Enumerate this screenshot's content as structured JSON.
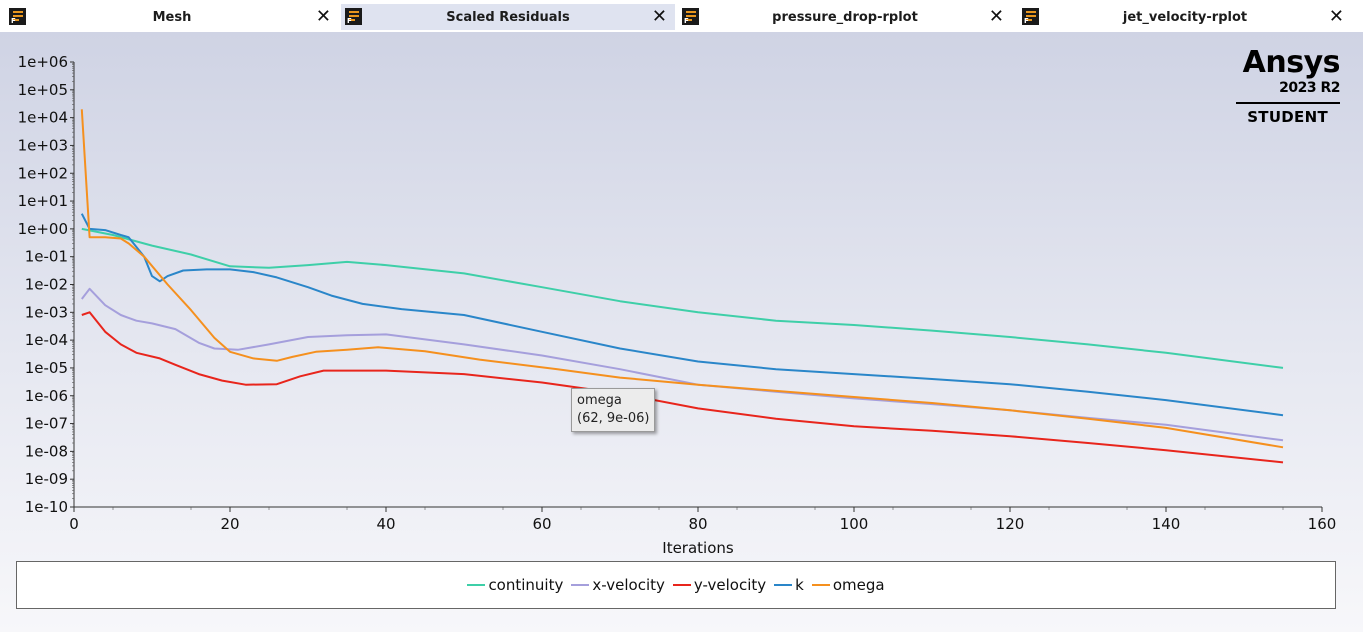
{
  "tabs": [
    {
      "label": "Mesh",
      "active": false
    },
    {
      "label": "Scaled Residuals",
      "active": true
    },
    {
      "label": "pressure_drop-rplot",
      "active": false
    },
    {
      "label": "jet_velocity-rplot",
      "active": false
    }
  ],
  "tab_close_glyph": "✕",
  "tab_icon_letter": "F",
  "logo": {
    "brand": "Ansys",
    "version": "2023 R2",
    "edition": "STUDENT"
  },
  "tooltip": {
    "series": "omega",
    "point": "(62, 9e-06)"
  },
  "chart_data": {
    "type": "line",
    "xlabel": "Iterations",
    "ylabel": "",
    "xlim": [
      0,
      160
    ],
    "ylim_exponent": [
      -10,
      6
    ],
    "yscale": "log",
    "grid": false,
    "legend_position": "bottom",
    "x_ticks": [
      0,
      20,
      40,
      60,
      80,
      100,
      120,
      140,
      160
    ],
    "y_ticks": [
      "1e+06",
      "1e+05",
      "1e+04",
      "1e+03",
      "1e+02",
      "1e+01",
      "1e+00",
      "1e-01",
      "1e-02",
      "1e-03",
      "1e-04",
      "1e-05",
      "1e-06",
      "1e-07",
      "1e-08",
      "1e-09",
      "1e-10"
    ],
    "series": [
      {
        "name": "continuity",
        "color": "#3ecfa8",
        "points": [
          [
            1,
            1.0
          ],
          [
            5,
            0.6
          ],
          [
            10,
            0.25
          ],
          [
            15,
            0.12
          ],
          [
            20,
            0.045
          ],
          [
            25,
            0.04
          ],
          [
            30,
            0.05
          ],
          [
            35,
            0.065
          ],
          [
            40,
            0.05
          ],
          [
            50,
            0.025
          ],
          [
            60,
            0.008
          ],
          [
            70,
            0.0025
          ],
          [
            80,
            0.001
          ],
          [
            90,
            0.0005
          ],
          [
            100,
            0.00035
          ],
          [
            110,
            0.00022
          ],
          [
            120,
            0.00013
          ],
          [
            130,
            7e-05
          ],
          [
            140,
            3.5e-05
          ],
          [
            155,
            1e-05
          ]
        ]
      },
      {
        "name": "x-velocity",
        "color": "#a59fdc",
        "points": [
          [
            1,
            0.003
          ],
          [
            2,
            0.007
          ],
          [
            4,
            0.0018
          ],
          [
            6,
            0.0008
          ],
          [
            8,
            0.0005
          ],
          [
            10,
            0.0004
          ],
          [
            13,
            0.00025
          ],
          [
            16,
            8e-05
          ],
          [
            18,
            5e-05
          ],
          [
            21,
            4.5e-05
          ],
          [
            25,
            7e-05
          ],
          [
            30,
            0.00013
          ],
          [
            35,
            0.00015
          ],
          [
            40,
            0.00016
          ],
          [
            50,
            7e-05
          ],
          [
            60,
            2.8e-05
          ],
          [
            70,
            9e-06
          ],
          [
            80,
            2.5e-06
          ],
          [
            90,
            1.4e-06
          ],
          [
            100,
            8e-07
          ],
          [
            110,
            5e-07
          ],
          [
            120,
            3e-07
          ],
          [
            130,
            1.6e-07
          ],
          [
            140,
            9e-08
          ],
          [
            155,
            2.5e-08
          ]
        ]
      },
      {
        "name": "y-velocity",
        "color": "#e8251c",
        "points": [
          [
            1,
            0.0008
          ],
          [
            2,
            0.001
          ],
          [
            4,
            0.0002
          ],
          [
            6,
            7e-05
          ],
          [
            8,
            3.5e-05
          ],
          [
            11,
            2.2e-05
          ],
          [
            13,
            1.3e-05
          ],
          [
            16,
            6e-06
          ],
          [
            19,
            3.5e-06
          ],
          [
            22,
            2.5e-06
          ],
          [
            26,
            2.6e-06
          ],
          [
            29,
            5e-06
          ],
          [
            32,
            8e-06
          ],
          [
            40,
            8e-06
          ],
          [
            50,
            6e-06
          ],
          [
            60,
            3e-06
          ],
          [
            70,
            1.2e-06
          ],
          [
            80,
            3.5e-07
          ],
          [
            90,
            1.5e-07
          ],
          [
            100,
            8e-08
          ],
          [
            110,
            5.5e-08
          ],
          [
            120,
            3.5e-08
          ],
          [
            130,
            2e-08
          ],
          [
            140,
            1.1e-08
          ],
          [
            155,
            4e-09
          ]
        ]
      },
      {
        "name": "k",
        "color": "#2a86c9",
        "points": [
          [
            1,
            3.5
          ],
          [
            2,
            1.0
          ],
          [
            4,
            0.9
          ],
          [
            6,
            0.6
          ],
          [
            7,
            0.5
          ],
          [
            9,
            0.1
          ],
          [
            10,
            0.02
          ],
          [
            11,
            0.013
          ],
          [
            12,
            0.02
          ],
          [
            14,
            0.032
          ],
          [
            17,
            0.035
          ],
          [
            20,
            0.035
          ],
          [
            23,
            0.028
          ],
          [
            26,
            0.018
          ],
          [
            30,
            0.008
          ],
          [
            33,
            0.004
          ],
          [
            37,
            0.002
          ],
          [
            42,
            0.0013
          ],
          [
            50,
            0.0008
          ],
          [
            60,
            0.0002
          ],
          [
            70,
            5e-05
          ],
          [
            80,
            1.7e-05
          ],
          [
            90,
            9e-06
          ],
          [
            100,
            6e-06
          ],
          [
            110,
            4e-06
          ],
          [
            120,
            2.6e-06
          ],
          [
            130,
            1.4e-06
          ],
          [
            140,
            7e-07
          ],
          [
            155,
            2e-07
          ]
        ]
      },
      {
        "name": "omega",
        "color": "#f5901e",
        "points": [
          [
            1,
            20000
          ],
          [
            2,
            0.5
          ],
          [
            4,
            0.5
          ],
          [
            6,
            0.45
          ],
          [
            7,
            0.3
          ],
          [
            9,
            0.1
          ],
          [
            12,
            0.01
          ],
          [
            15,
            0.0012
          ],
          [
            18,
            0.00012
          ],
          [
            20,
            3.8e-05
          ],
          [
            23,
            2.2e-05
          ],
          [
            26,
            1.8e-05
          ],
          [
            28,
            2.5e-05
          ],
          [
            31,
            3.8e-05
          ],
          [
            35,
            4.5e-05
          ],
          [
            39,
            5.5e-05
          ],
          [
            45,
            4e-05
          ],
          [
            52,
            2e-05
          ],
          [
            62,
            9e-06
          ],
          [
            70,
            4.5e-06
          ],
          [
            80,
            2.5e-06
          ],
          [
            90,
            1.5e-06
          ],
          [
            100,
            9e-07
          ],
          [
            110,
            5.5e-07
          ],
          [
            120,
            3e-07
          ],
          [
            130,
            1.5e-07
          ],
          [
            140,
            7e-08
          ],
          [
            155,
            1.4e-08
          ]
        ]
      }
    ]
  }
}
